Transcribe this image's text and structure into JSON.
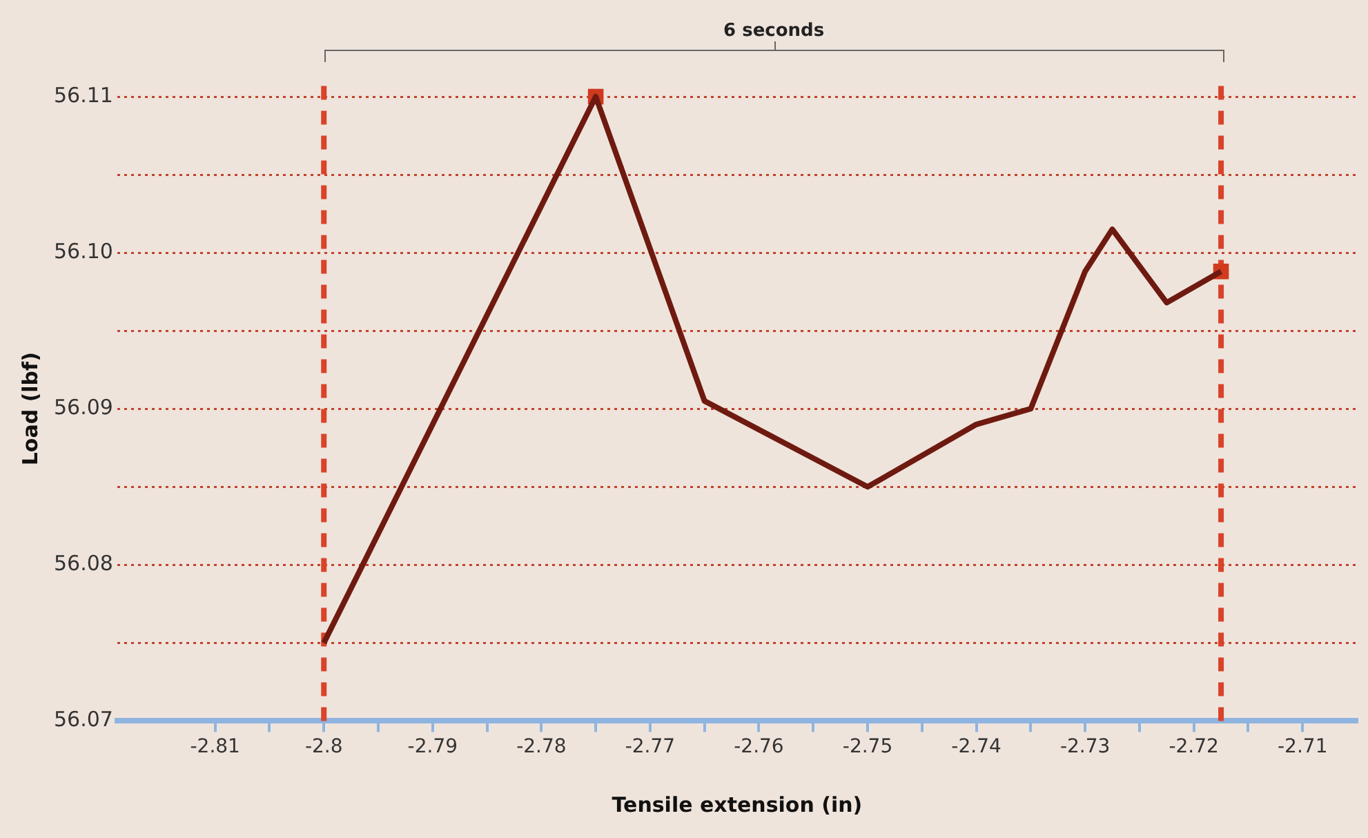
{
  "chart_data": {
    "type": "line",
    "xlabel": "Tensile extension (in)",
    "ylabel": "Load (lbf)",
    "annotations": [
      "6 seconds"
    ],
    "series": [
      {
        "color": "#6e1a10",
        "marker": "none",
        "x": [
          -2.8,
          -2.775,
          -2.765,
          -2.75,
          -2.74,
          -2.735,
          -2.73,
          -2.7275,
          -2.7225,
          -2.7175
        ],
        "values": [
          56.075,
          56.11,
          56.0905,
          56.085,
          56.089,
          56.09,
          56.0988,
          56.1015,
          56.0968,
          56.0988
        ]
      },
      {
        "type": "scatter",
        "color": "#d03a1f",
        "marker": "square",
        "x": [
          -2.775,
          -2.7175
        ],
        "values": [
          56.11,
          56.0988
        ]
      }
    ],
    "ref_lines": [
      {
        "axis": "x",
        "value": -2.8,
        "color": "#d9432a",
        "line_style": "dashed"
      },
      {
        "axis": "x",
        "value": -2.7175,
        "color": "#d9432a",
        "line_style": "dashed"
      }
    ],
    "xlim": [
      -2.819,
      -2.705
    ],
    "xticks": [
      -2.81,
      {
        "value": -2.805,
        "label": null
      },
      -2.8,
      {
        "value": -2.795,
        "label": null
      },
      -2.79,
      {
        "value": -2.785,
        "label": null
      },
      -2.78,
      {
        "value": -2.775,
        "label": null
      },
      -2.77,
      {
        "value": -2.765,
        "label": null
      },
      -2.76,
      {
        "value": -2.755,
        "label": null
      },
      -2.75,
      {
        "value": -2.745,
        "label": null
      },
      -2.74,
      {
        "value": -2.735,
        "label": null
      },
      -2.73,
      {
        "value": -2.725,
        "label": null
      },
      -2.72,
      {
        "value": -2.715,
        "label": null
      },
      -2.71
    ],
    "ylim": [
      56.07,
      56.11
    ],
    "yticks": [
      56.07,
      {
        "value": 56.075,
        "label": null
      },
      56.08,
      {
        "value": 56.085,
        "label": null
      },
      56.09,
      {
        "value": 56.095,
        "label": null
      },
      {
        "value": 56.1,
        "label": "56.10"
      },
      {
        "value": 56.105,
        "label": null
      },
      56.11
    ],
    "grid": "y",
    "legend": false
  }
}
